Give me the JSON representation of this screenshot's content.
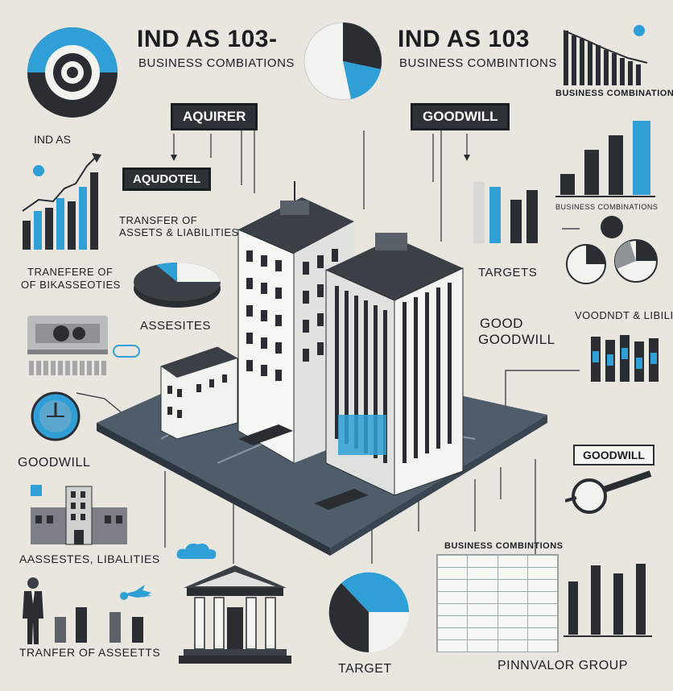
{
  "header": {
    "title_left": "IND AS 103-",
    "subtitle_left": "BUSINESS COMBIATIONS",
    "title_right": "IND AS 103",
    "subtitle_right": "BUSINESS COMBINTIONS",
    "topright_caption": "BUSINESS COMBINATIONS"
  },
  "tags": {
    "aquirer": "AQUIRER",
    "goodwill_top": "GOODWILL",
    "aqudotel": "AQUDOTEL",
    "goodwill_right": "GOODWILL"
  },
  "labels": {
    "ind_as": "IND AS",
    "transfer_assets_liabilities": "TRANSFER OF ASSETS & LIABILITIES",
    "tranefer_line1": "TRANEFERE OF",
    "tranefer_line2": "OF BIKASSEOTIES",
    "assesites": "ASSESITES",
    "goodwill_left": "GOODWILL",
    "assesites_libalities": "AASSESTES, LIBALITIES",
    "transfer_of_assets": "TRANFER OF ASSEETTS",
    "target_bottom": "TARGET",
    "targets_right": "TARGETS",
    "voodndt_libilities": "VOODNDT & LIBILITIES",
    "good": "GOOD",
    "goodwill_mid": "GOODWILL",
    "business_combi_small": "BUSINESS COMBINATIONS",
    "business_combi_table": "BUSINESS COMBINTIONS",
    "footer_brand": "PINNVALOR GROUP",
    "building_small_caption": "INDAS"
  },
  "colors": {
    "accent_blue": "#2f9fd6",
    "dark": "#2a2e33",
    "mid_gray": "#8f9499",
    "light_gray": "#d8d9d6",
    "background": "#e8e6de",
    "platform": "#596876"
  }
}
